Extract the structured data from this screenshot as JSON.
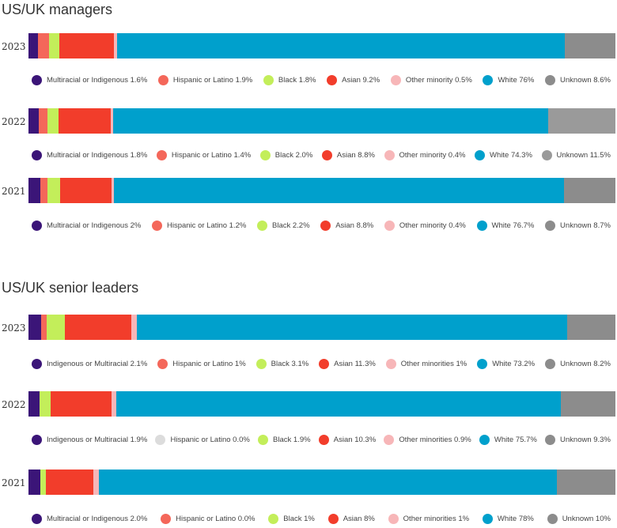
{
  "chart_data": [
    {
      "type": "bar",
      "orientation": "horizontal",
      "stacked": true,
      "title": "US/UK managers",
      "rows": [
        {
          "year": "2023",
          "items": [
            {
              "label": "Multiracial or Indigenous 1.6%",
              "value": 1.6,
              "color": "#3b1578"
            },
            {
              "label": "Hispanic or Latino 1.9%",
              "value": 1.9,
              "color": "#f4675a"
            },
            {
              "label": "Black 1.8%",
              "value": 1.8,
              "color": "#c3ee5a"
            },
            {
              "label": "Asian 9.2%",
              "value": 9.2,
              "color": "#f23d2b"
            },
            {
              "label": "Other minority 0.5%",
              "value": 0.5,
              "color": "#f7b6b8"
            },
            {
              "label": "White 76%",
              "value": 76,
              "color": "#00a0cc"
            },
            {
              "label": "Unknown 8.6%",
              "value": 8.6,
              "color": "#8c8c8c"
            }
          ]
        },
        {
          "year": "2022",
          "items": [
            {
              "label": "Multiracial or Indigenous 1.8%",
              "value": 1.8,
              "color": "#3b1578"
            },
            {
              "label": "Hispanic or Latino 1.4%",
              "value": 1.4,
              "color": "#f4675a"
            },
            {
              "label": "Black 2.0%",
              "value": 2.0,
              "color": "#c3ee5a"
            },
            {
              "label": "Asian 8.8%",
              "value": 8.8,
              "color": "#f23d2b"
            },
            {
              "label": "Other minority 0.4%",
              "value": 0.4,
              "color": "#f7b6b8"
            },
            {
              "label": "White 74.3%",
              "value": 74.3,
              "color": "#00a0cc"
            },
            {
              "label": "Unknown 11.5%",
              "value": 11.5,
              "color": "#9a9a9a"
            }
          ]
        },
        {
          "year": "2021",
          "items": [
            {
              "label": "Multiracial or Indigenous 2%",
              "value": 2,
              "color": "#3b1578"
            },
            {
              "label": "Hispanic or Latino 1.2%",
              "value": 1.2,
              "color": "#f4675a"
            },
            {
              "label": "Black 2.2%",
              "value": 2.2,
              "color": "#c3ee5a"
            },
            {
              "label": "Asian 8.8%",
              "value": 8.8,
              "color": "#f23d2b"
            },
            {
              "label": "Other minority 0.4%",
              "value": 0.4,
              "color": "#f7b6b8"
            },
            {
              "label": "White 76.7%",
              "value": 76.7,
              "color": "#00a0cc"
            },
            {
              "label": "Unknown 8.7%",
              "value": 8.7,
              "color": "#8c8c8c"
            }
          ]
        }
      ]
    },
    {
      "type": "bar",
      "orientation": "horizontal",
      "stacked": true,
      "title": "US/UK senior leaders",
      "rows": [
        {
          "year": "2023",
          "items": [
            {
              "label": "Indigenous or Multiracial 2.1%",
              "value": 2.1,
              "color": "#3b1578"
            },
            {
              "label": "Hispanic or Latino 1%",
              "value": 1,
              "color": "#f4675a"
            },
            {
              "label": "Black 3.1%",
              "value": 3.1,
              "color": "#c3ee5a"
            },
            {
              "label": "Asian 11.3%",
              "value": 11.3,
              "color": "#f23d2b"
            },
            {
              "label": "Other minorities 1%",
              "value": 1,
              "color": "#f7b6b8"
            },
            {
              "label": "White 73.2%",
              "value": 73.2,
              "color": "#00a0cc"
            },
            {
              "label": "Unknown 8.2%",
              "value": 8.2,
              "color": "#8c8c8c"
            }
          ]
        },
        {
          "year": "2022",
          "items": [
            {
              "label": "Indigenous or Multiracial 1.9%",
              "value": 1.9,
              "color": "#3b1578"
            },
            {
              "label": "Hispanic or Latino 0.0%",
              "value": 0,
              "color": "#dcdcdc"
            },
            {
              "label": "Black 1.9%",
              "value": 1.9,
              "color": "#c3ee5a"
            },
            {
              "label": "Asian 10.3%",
              "value": 10.3,
              "color": "#f23d2b"
            },
            {
              "label": "Other minorities 0.9%",
              "value": 0.9,
              "color": "#f7b6b8"
            },
            {
              "label": "White 75.7%",
              "value": 75.7,
              "color": "#00a0cc"
            },
            {
              "label": "Unknown 9.3%",
              "value": 9.3,
              "color": "#8c8c8c"
            }
          ]
        },
        {
          "year": "2021",
          "items": [
            {
              "label": "Multiracial or Indigenous 2.0%",
              "value": 2.0,
              "color": "#3b1578"
            },
            {
              "label": "Hispanic or Latino 0.0%",
              "value": 0,
              "color": "#f4675a"
            },
            {
              "label": "Black 1%",
              "value": 1,
              "color": "#c3ee5a"
            },
            {
              "label": "Asian 8%",
              "value": 8,
              "color": "#f23d2b"
            },
            {
              "label": "Other minorities 1%",
              "value": 1,
              "color": "#f7b6b8"
            },
            {
              "label": "White 78%",
              "value": 78,
              "color": "#00a0cc"
            },
            {
              "label": "Unknown 10%",
              "value": 10,
              "color": "#8c8c8c"
            }
          ]
        }
      ]
    }
  ]
}
